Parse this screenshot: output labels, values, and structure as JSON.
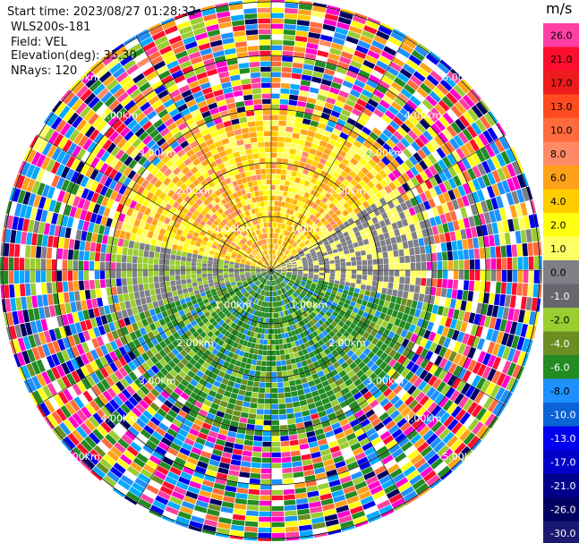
{
  "header": {
    "start_time": "Start time: 2023/08/27 01:28:32",
    "station": "WLS200s-181",
    "field": "Field: VEL",
    "elevation": "Elevation(deg): 35.30",
    "nrays": "NRays: 120"
  },
  "chart_data": {
    "type": "ppi",
    "field": "VEL",
    "units": "m/s",
    "nrays": 120,
    "range_rings_km": [
      1,
      2,
      3,
      4,
      5
    ],
    "range_ring_labels": [
      "1.00km",
      "2.00km",
      "3.00km",
      "4.00km",
      "5.00km"
    ],
    "colorbar": {
      "unit": "m/s",
      "levels": [
        {
          "label": "26.0",
          "color": "#ff3fa2"
        },
        {
          "label": "21.0",
          "color": "#ff0d2e"
        },
        {
          "label": "17.0",
          "color": "#ee1c1c"
        },
        {
          "label": "13.0",
          "color": "#ff4b1f"
        },
        {
          "label": "10.0",
          "color": "#ff6b3d"
        },
        {
          "label": "8.0",
          "color": "#ff8a66"
        },
        {
          "label": "6.0",
          "color": "#ffa21a"
        },
        {
          "label": "4.0",
          "color": "#ffcc00"
        },
        {
          "label": "2.0",
          "color": "#ffff10"
        },
        {
          "label": "1.0",
          "color": "#ffff66"
        },
        {
          "label": "0.0",
          "color": "#7f7f88"
        },
        {
          "label": "-1.0",
          "color": "#66666e"
        },
        {
          "label": "-2.0",
          "color": "#9acd32"
        },
        {
          "label": "-4.0",
          "color": "#6b8e23"
        },
        {
          "label": "-6.0",
          "color": "#228b22"
        },
        {
          "label": "-8.0",
          "color": "#1e90ff"
        },
        {
          "label": "-10.0",
          "color": "#0b63d6"
        },
        {
          "label": "-13.0",
          "color": "#0000ee"
        },
        {
          "label": "-17.0",
          "color": "#0000c8"
        },
        {
          "label": "-21.0",
          "color": "#00008b"
        },
        {
          "label": "-26.0",
          "color": "#000060"
        },
        {
          "label": "-30.0",
          "color": "#191970"
        }
      ]
    },
    "sectors": {
      "north_dominant": "1.0 to 8.0 m/s (yellow/orange)",
      "south_dominant": "-1.0 to -8.0 m/s (green)",
      "east_west_near_zero": "0.0 to -1.0 m/s (grey)",
      "outer_ring_km": 3.0,
      "outer_ring_note": "noisy values beyond ~3 km"
    }
  }
}
